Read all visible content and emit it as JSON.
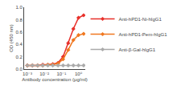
{
  "chart_data": {
    "type": "line",
    "xlabel": "Antibody concentration (μg/ml)",
    "ylabel": "OD (450 nm)",
    "log": "x",
    "xlim": [
      0.00065,
      2.5
    ],
    "ylim": [
      0.0,
      1.0
    ],
    "xticks": [
      {
        "value": 0.001,
        "label": "10⁻³"
      },
      {
        "value": 0.01,
        "label": "10⁻²"
      },
      {
        "value": 0.1,
        "label": "10⁻¹"
      },
      {
        "value": 1.0,
        "label": "10⁰"
      }
    ],
    "yticks": [
      {
        "value": 0,
        "label": "0.0"
      },
      0.2,
      0.4,
      0.6,
      0.8,
      {
        "value": 1.0,
        "label": "1.0"
      }
    ],
    "x": [
      0.001,
      0.002,
      0.004,
      0.008,
      0.016,
      0.031,
      0.063,
      0.125,
      0.25,
      0.5,
      1.0,
      2.0
    ],
    "series": [
      {
        "name": "Anti-hPD1-Ni-hIgG1",
        "color": "#e8302a",
        "marker": "diamond",
        "values": [
          0.06,
          0.06,
          0.06,
          0.07,
          0.07,
          0.08,
          0.1,
          0.2,
          0.42,
          0.65,
          0.83,
          0.87
        ]
      },
      {
        "name": "Anti-hPD1-Pem-hIgG1",
        "color": "#f07820",
        "marker": "diamond",
        "values": [
          0.06,
          0.06,
          0.06,
          0.06,
          0.07,
          0.07,
          0.09,
          0.16,
          0.31,
          0.47,
          0.55,
          0.57
        ]
      },
      {
        "name": "Anti-β-Gal-hIgG1",
        "color": "#aaaaaa",
        "marker": "diamond",
        "values": [
          0.06,
          0.06,
          0.06,
          0.06,
          0.06,
          0.06,
          0.06,
          0.06,
          0.06,
          0.06,
          0.06,
          0.06
        ]
      }
    ],
    "grid": false,
    "legend": "right"
  }
}
